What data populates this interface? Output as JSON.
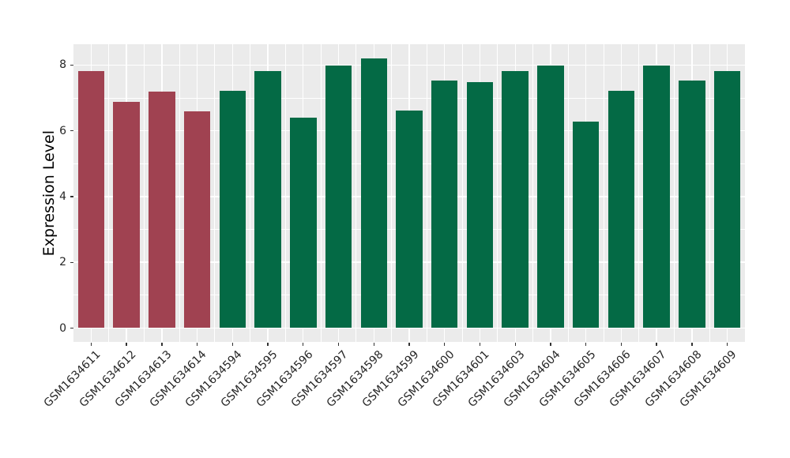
{
  "figure": {
    "background": "#ffffff",
    "panel_background": "#ebebeb",
    "gridline_color": "#ffffff",
    "tick_color": "#333333",
    "tick_label_color": "#262626"
  },
  "chart_data": {
    "type": "bar",
    "title": "",
    "xlabel": "",
    "ylabel": "Expression Level",
    "yticks": [
      0,
      2,
      4,
      6,
      8
    ],
    "ylim": [
      0,
      8.6
    ],
    "grid": "major and minor, white on gray panel",
    "legend": "none",
    "categories": [
      "GSM1634611",
      "GSM1634612",
      "GSM1634613",
      "GSM1634614",
      "GSM1634594",
      "GSM1634595",
      "GSM1634596",
      "GSM1634597",
      "GSM1634598",
      "GSM1634599",
      "GSM1634600",
      "GSM1634601",
      "GSM1634603",
      "GSM1634604",
      "GSM1634605",
      "GSM1634606",
      "GSM1634607",
      "GSM1634608",
      "GSM1634609"
    ],
    "values": [
      7.82,
      6.87,
      7.2,
      6.6,
      7.22,
      7.82,
      6.4,
      7.98,
      8.2,
      6.62,
      7.53,
      7.49,
      7.82,
      7.98,
      6.28,
      7.22,
      7.98,
      7.53,
      7.82
    ],
    "bar_colors": [
      "#a04251",
      "#a04251",
      "#a04251",
      "#a04251",
      "#046a45",
      "#046a45",
      "#046a45",
      "#046a45",
      "#046a45",
      "#046a45",
      "#046a45",
      "#046a45",
      "#046a45",
      "#046a45",
      "#046a45",
      "#046a45",
      "#046a45",
      "#046a45",
      "#046a45"
    ],
    "accent_colors": {
      "red": "#a04251",
      "green": "#046a45"
    }
  }
}
